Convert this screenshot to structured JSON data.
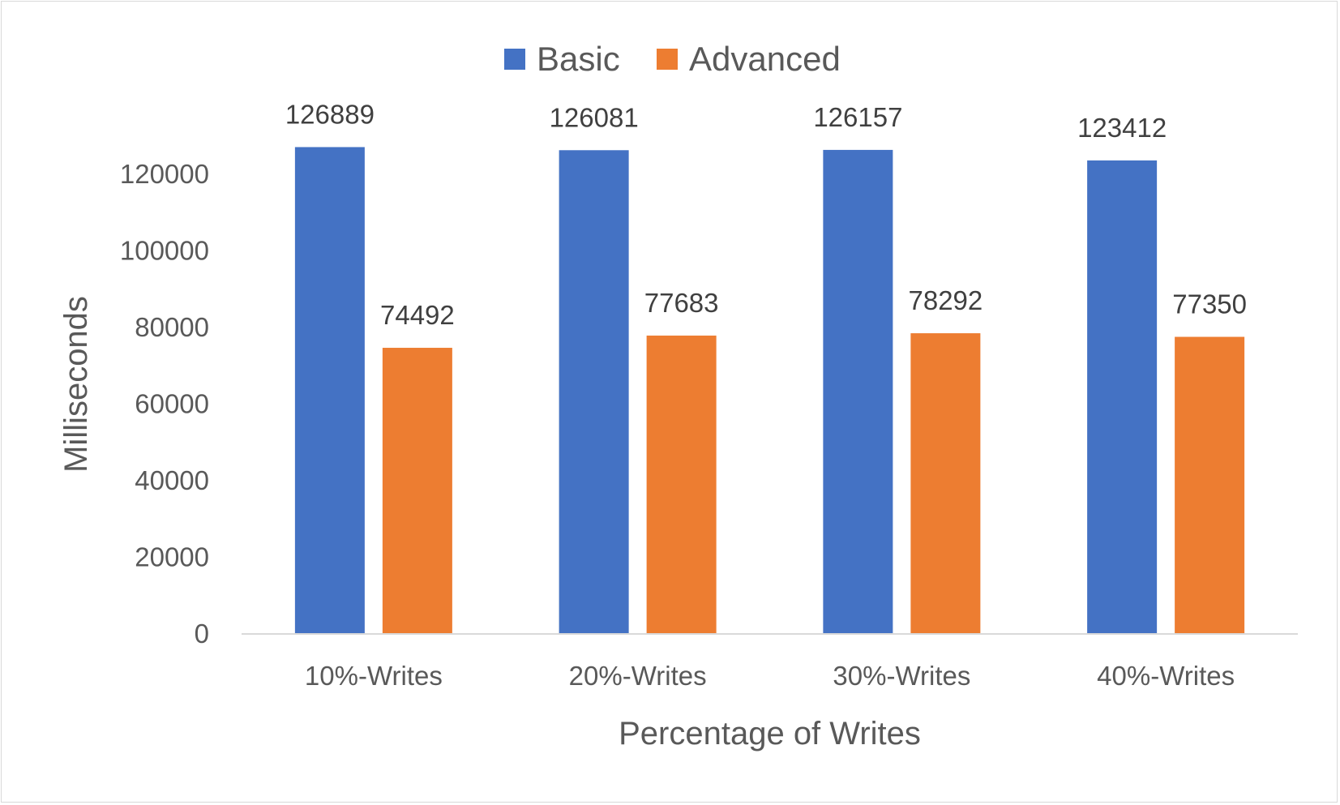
{
  "chart_data": {
    "type": "bar",
    "categories": [
      "10%-Writes",
      "20%-Writes",
      "30%-Writes",
      "40%-Writes"
    ],
    "series": [
      {
        "name": "Basic",
        "values": [
          126889,
          126081,
          126157,
          123412
        ],
        "color": "#4472C4"
      },
      {
        "name": "Advanced",
        "values": [
          74492,
          77683,
          78292,
          77350
        ],
        "color": "#ED7D31"
      }
    ],
    "title": "",
    "xlabel": "Percentage of Writes",
    "ylabel": "Milliseconds",
    "ylim": [
      0,
      120000
    ],
    "yticks": [
      0,
      20000,
      40000,
      60000,
      80000,
      100000,
      120000
    ],
    "grid": false,
    "legend": "top-center",
    "data_labels": true,
    "axis_color": "#d9d9d9"
  }
}
